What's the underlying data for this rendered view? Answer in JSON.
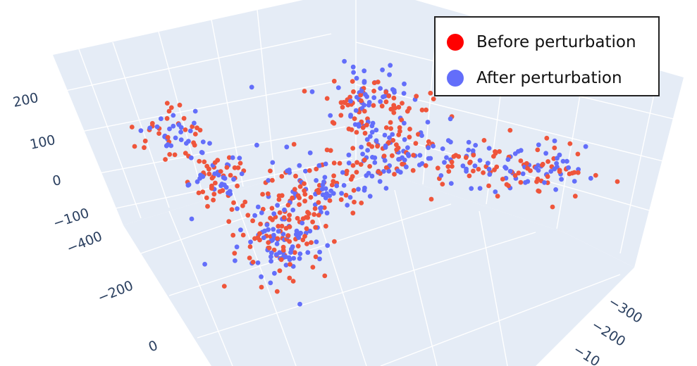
{
  "chart_data": {
    "type": "scatter",
    "subtype": "3d-scatter",
    "title": "",
    "x_axis": {
      "title": "",
      "tick_labels": [
        "200",
        "100",
        "0",
        "−100",
        "−400",
        "−200",
        "0"
      ]
    },
    "z_axis": {
      "title": "",
      "tick_labels": [
        "−300",
        "−200",
        "−10"
      ]
    },
    "legend_placement": "top-right",
    "grid": true,
    "colors": {
      "before": "#EF553B",
      "after": "#636EFA",
      "legend_before": "#FF0000",
      "scene_bg": "#E5ECF6"
    },
    "series": [
      {
        "name": "Before perturbation",
        "color": "#EF553B"
      },
      {
        "name": "After perturbation",
        "color": "#636EFA"
      }
    ],
    "clusters": [
      {
        "x": 245,
        "y": 190,
        "sx": 28,
        "sy": 18,
        "n": 55
      },
      {
        "x": 312,
        "y": 255,
        "sx": 26,
        "sy": 22,
        "n": 75
      },
      {
        "x": 395,
        "y": 335,
        "sx": 30,
        "sy": 35,
        "n": 160
      },
      {
        "x": 430,
        "y": 280,
        "sx": 22,
        "sy": 25,
        "n": 50
      },
      {
        "x": 480,
        "y": 255,
        "sx": 35,
        "sy": 20,
        "n": 60
      },
      {
        "x": 510,
        "y": 145,
        "sx": 38,
        "sy": 25,
        "n": 95
      },
      {
        "x": 560,
        "y": 210,
        "sx": 38,
        "sy": 28,
        "n": 115
      },
      {
        "x": 650,
        "y": 225,
        "sx": 30,
        "sy": 14,
        "n": 35
      },
      {
        "x": 730,
        "y": 240,
        "sx": 40,
        "sy": 17,
        "n": 70
      },
      {
        "x": 800,
        "y": 240,
        "sx": 22,
        "sy": 18,
        "n": 35
      }
    ],
    "outliers": [
      {
        "x": 876,
        "y": 258
      },
      {
        "x": 191,
        "y": 208
      },
      {
        "x": 784,
        "y": 294
      },
      {
        "x": 612,
        "y": 283
      }
    ]
  },
  "legend": {
    "items": [
      {
        "label": "Before perturbation"
      },
      {
        "label": "After perturbation"
      }
    ]
  }
}
